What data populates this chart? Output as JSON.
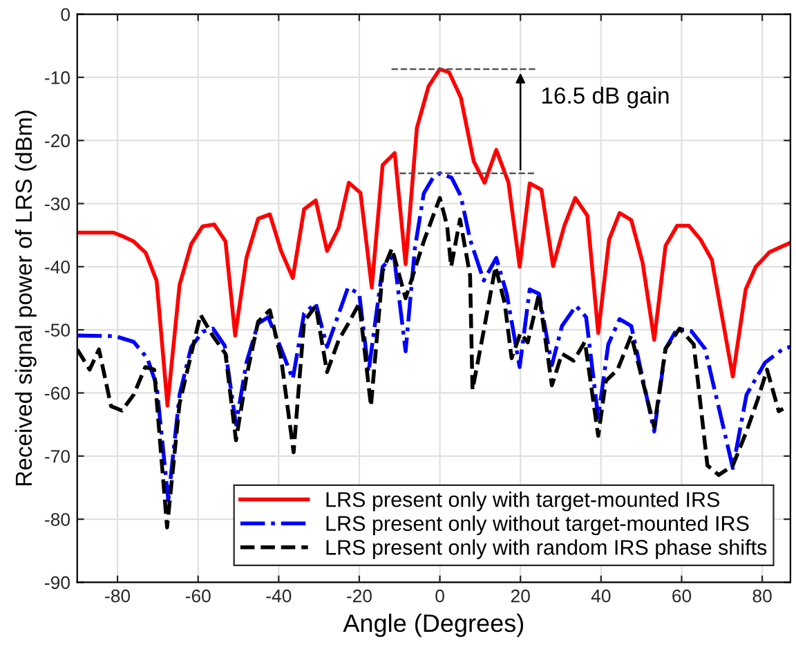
{
  "chart_data": {
    "type": "line",
    "xlabel": "Angle (Degrees)",
    "ylabel": "Received signal power of LRS (dBm)",
    "xlim": [
      -90,
      87
    ],
    "ylim": [
      -90,
      0
    ],
    "xticks": [
      -80,
      -60,
      -40,
      -20,
      0,
      20,
      40,
      60,
      80
    ],
    "yticks": [
      -90,
      -80,
      -70,
      -60,
      -50,
      -40,
      -30,
      -20,
      -10,
      0
    ],
    "grid": true,
    "legend": "bottom right",
    "marker": "none",
    "ref_lines": [
      {
        "axis": "y",
        "value": -8.7,
        "color": "#555555",
        "line_style": "dashed"
      },
      {
        "axis": "y",
        "value": -25.2,
        "color": "#555555",
        "line_style": "dashed"
      }
    ],
    "annotations": [
      {
        "text": "16.5 dB gain",
        "x": 20,
        "y": -8.7
      }
    ],
    "series": [
      {
        "name": "LRS present only with target-mounted IRS",
        "color": "#ff0000",
        "line_style": "solid",
        "x": [
          -90,
          -81,
          -79,
          -76,
          -73,
          -70.3,
          -67.6,
          -64.6,
          -61.7,
          -58.9,
          -56,
          -53.2,
          -50.8,
          -48,
          -45.1,
          -42.2,
          -39.4,
          -36.5,
          -33.7,
          -30.8,
          -28,
          -25.1,
          -22.6,
          -19.7,
          -16.9,
          -14.2,
          -11.2,
          -8.5,
          -5.7,
          -2.8,
          0,
          2.3,
          5.2,
          8.4,
          11.1,
          14,
          17,
          19.8,
          22.3,
          25.2,
          28.1,
          30.9,
          33.6,
          36.6,
          39.3,
          42,
          44.6,
          47.5,
          50.3,
          53.2,
          56,
          58.9,
          61.8,
          64.7,
          67.5,
          72.7,
          75.9,
          78.4,
          81.8,
          85.2,
          87
        ],
        "values": [
          -34.6,
          -34.6,
          -35.1,
          -36,
          -37.8,
          -42.2,
          -62,
          -42.9,
          -36.4,
          -33.6,
          -33.3,
          -36,
          -50.9,
          -38.6,
          -32.4,
          -31.7,
          -37.5,
          -41.8,
          -30.9,
          -29.5,
          -37.5,
          -33.8,
          -26.7,
          -28.3,
          -43.3,
          -23.9,
          -22,
          -39.6,
          -18,
          -11.4,
          -8.7,
          -9.2,
          -13.2,
          -23.3,
          -26.7,
          -21.5,
          -26.6,
          -40,
          -26.8,
          -27.8,
          -39.9,
          -33.5,
          -29.1,
          -31.9,
          -50.5,
          -35.7,
          -31.5,
          -32.6,
          -39.3,
          -51.6,
          -36.7,
          -33.5,
          -33.5,
          -35.7,
          -38.9,
          -57.4,
          -43.6,
          -40,
          -37.7,
          -36.7,
          -36.2
        ]
      },
      {
        "name": "LRS present only without target-mounted IRS",
        "color": "#0000ff",
        "line_style": "dashdot",
        "x": [
          -90,
          -80.6,
          -76,
          -72.6,
          -70.3,
          -67.4,
          -64.6,
          -61.7,
          -58.9,
          -56.3,
          -53.4,
          -50.6,
          -48,
          -45.1,
          -42.6,
          -39.4,
          -36.5,
          -33.7,
          -30.8,
          -28,
          -22.8,
          -20,
          -17.7,
          -14.2,
          -11.4,
          -8.5,
          -6.2,
          -4,
          -1.7,
          0,
          2.9,
          5.2,
          7.5,
          10.9,
          14,
          16.6,
          19.8,
          22.3,
          24.6,
          27.8,
          30.3,
          33.8,
          36.3,
          39.3,
          41.8,
          44.6,
          47.5,
          53.2,
          56,
          58.9,
          62.4,
          65.8,
          69.8,
          72.7,
          76.1,
          80.7,
          85.2,
          87
        ],
        "values": [
          -50.9,
          -51,
          -51.9,
          -54.5,
          -58.8,
          -77,
          -60.3,
          -52.7,
          -50.3,
          -49.8,
          -52.5,
          -65,
          -55.2,
          -49,
          -48,
          -53,
          -57.8,
          -47.4,
          -45.8,
          -52.7,
          -43.3,
          -44.3,
          -56.7,
          -40,
          -38.2,
          -53.4,
          -37.1,
          -28.4,
          -25.9,
          -25.2,
          -25.9,
          -28.8,
          -35.7,
          -42.2,
          -38.6,
          -44.3,
          -55.9,
          -43.6,
          -44.3,
          -55.6,
          -49.4,
          -46.2,
          -48,
          -63.9,
          -52.3,
          -48.3,
          -49.4,
          -66.1,
          -53,
          -49.8,
          -50.2,
          -53,
          -63.9,
          -71.9,
          -60.3,
          -55.2,
          -53,
          -52.7
        ]
      },
      {
        "name": "LRS present only with random IRS phase shifts",
        "color": "#000000",
        "line_style": "dashed",
        "x": [
          -90,
          -86.9,
          -84.6,
          -81.6,
          -78.9,
          -76,
          -73.1,
          -70.9,
          -67.7,
          -64.6,
          -61.7,
          -59.4,
          -56.4,
          -53.2,
          -50.6,
          -48,
          -45.1,
          -42.2,
          -39.4,
          -36.3,
          -33.7,
          -30.8,
          -28,
          -25.1,
          -22.8,
          -20,
          -17.1,
          -14.2,
          -11.9,
          -8.5,
          -4,
          -1.7,
          0,
          1.8,
          2.8,
          5,
          7.5,
          8.1,
          10.9,
          13.8,
          16.1,
          17.8,
          20,
          21.8,
          24.6,
          27.8,
          30.3,
          33.2,
          36,
          39.3,
          41.2,
          44.1,
          47.5,
          53.2,
          56,
          59.5,
          63,
          66.4,
          69.2,
          72.7,
          76.1,
          78.9,
          81.2,
          84.1,
          85.2
        ],
        "values": [
          -53.1,
          -56.3,
          -53.1,
          -62.1,
          -62.8,
          -60.3,
          -55.9,
          -56.3,
          -81.3,
          -61.7,
          -53.8,
          -47.6,
          -50.9,
          -53.8,
          -67.5,
          -57.4,
          -48.7,
          -46.9,
          -54.5,
          -69.4,
          -48.7,
          -46.2,
          -56.7,
          -51.6,
          -49.1,
          -45.8,
          -62.1,
          -40.7,
          -37.1,
          -45,
          -36,
          -32,
          -29.1,
          -33.5,
          -40,
          -32.5,
          -41.4,
          -59.5,
          -50.1,
          -40,
          -45.8,
          -54.5,
          -50.5,
          -52,
          -44.3,
          -58.8,
          -53.8,
          -54.9,
          -51.9,
          -66.8,
          -58.1,
          -56.3,
          -50.9,
          -65.4,
          -53,
          -49.8,
          -52.3,
          -71.5,
          -73,
          -71.5,
          -66.1,
          -61,
          -56.3,
          -62.9,
          -62.5
        ]
      }
    ]
  }
}
